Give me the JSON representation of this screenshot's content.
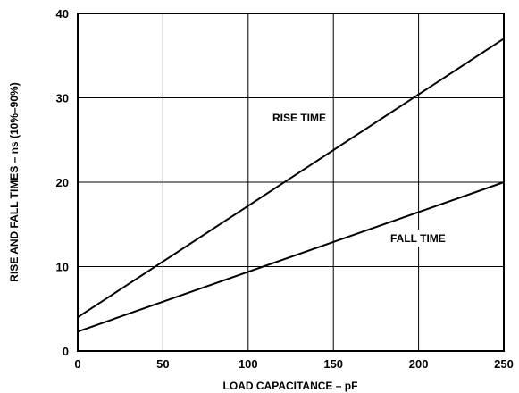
{
  "chart_data": {
    "type": "line",
    "title": "",
    "xlabel": "LOAD CAPACITANCE – pF",
    "ylabel": "RISE AND FALL TIMES – ns (10%–90%)",
    "xlim": [
      0,
      250
    ],
    "ylim": [
      0,
      40
    ],
    "xticks": [
      "0",
      "50",
      "100",
      "150",
      "200",
      "250"
    ],
    "yticks": [
      "0",
      "10",
      "20",
      "30",
      "40"
    ],
    "grid": true,
    "series": [
      {
        "name": "RISE TIME",
        "x": [
          0,
          250
        ],
        "y": [
          4,
          37
        ]
      },
      {
        "name": "FALL TIME",
        "x": [
          0,
          250
        ],
        "y": [
          2.3,
          20
        ]
      }
    ]
  }
}
